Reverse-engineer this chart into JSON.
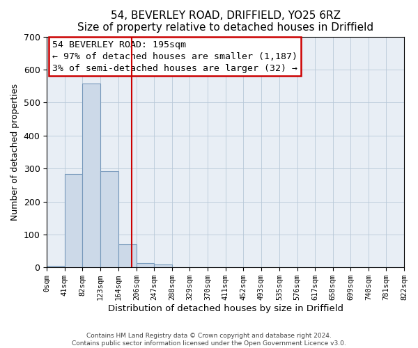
{
  "title1": "54, BEVERLEY ROAD, DRIFFIELD, YO25 6RZ",
  "title2": "Size of property relative to detached houses in Driffield",
  "xlabel": "Distribution of detached houses by size in Driffield",
  "ylabel": "Number of detached properties",
  "bar_values": [
    5,
    283,
    559,
    292,
    70,
    14,
    8,
    0,
    0,
    0,
    0,
    0,
    0,
    0,
    0,
    0,
    0,
    0,
    0,
    0
  ],
  "bin_edges": [
    0,
    41,
    82,
    123,
    164,
    206,
    247,
    288,
    329,
    370,
    411,
    452,
    493,
    535,
    576,
    617,
    658,
    699,
    740,
    781,
    822
  ],
  "tick_labels": [
    "0sqm",
    "41sqm",
    "82sqm",
    "123sqm",
    "164sqm",
    "206sqm",
    "247sqm",
    "288sqm",
    "329sqm",
    "370sqm",
    "411sqm",
    "452sqm",
    "493sqm",
    "535sqm",
    "576sqm",
    "617sqm",
    "658sqm",
    "699sqm",
    "740sqm",
    "781sqm",
    "822sqm"
  ],
  "property_size": 195,
  "bar_facecolor": "#ccd9e8",
  "bar_edgecolor": "#7799bb",
  "vline_color": "#cc0000",
  "annotation_box_edgecolor": "#cc0000",
  "annotation_text_line1": "54 BEVERLEY ROAD: 195sqm",
  "annotation_text_line2": "← 97% of detached houses are smaller (1,187)",
  "annotation_text_line3": "3% of semi-detached houses are larger (32) →",
  "ylim": [
    0,
    700
  ],
  "yticks": [
    0,
    100,
    200,
    300,
    400,
    500,
    600,
    700
  ],
  "footer1": "Contains HM Land Registry data © Crown copyright and database right 2024.",
  "footer2": "Contains public sector information licensed under the Open Government Licence v3.0.",
  "fig_background_color": "#ffffff",
  "plot_background_color": "#e8eef5",
  "title_fontsize": 11,
  "subtitle_fontsize": 10,
  "tick_fontsize": 7.5,
  "annotation_fontsize": 9.5
}
